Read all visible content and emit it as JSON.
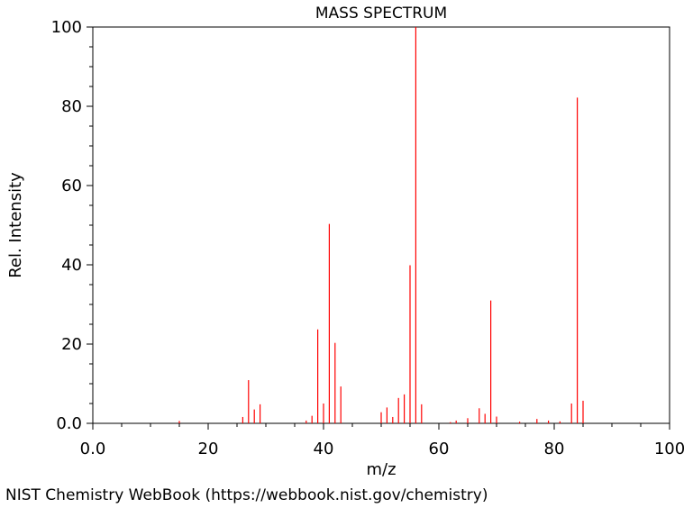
{
  "credit": "NIST Chemistry WebBook (https://webbook.nist.gov/chemistry)",
  "colors": {
    "peak": "#ff0000",
    "axis": "#000000"
  },
  "chart_data": {
    "type": "bar",
    "title": "MASS SPECTRUM",
    "xlabel": "m/z",
    "ylabel": "Rel. Intensity",
    "xlim": [
      0,
      100
    ],
    "ylim": [
      0,
      100
    ],
    "xticks": [
      0,
      20,
      40,
      60,
      80,
      100
    ],
    "xtick_labels": [
      "0.0",
      "20",
      "40",
      "60",
      "80",
      "100"
    ],
    "yticks": [
      0,
      20,
      40,
      60,
      80,
      100
    ],
    "ytick_labels": [
      "0.0",
      "20",
      "40",
      "60",
      "80",
      "100"
    ],
    "grid": false,
    "legend": "none",
    "series": [
      {
        "mz": [
          15,
          26,
          27,
          28,
          29,
          37,
          38,
          39,
          40,
          41,
          42,
          43,
          50,
          51,
          52,
          53,
          54,
          55,
          56,
          57,
          62,
          63,
          65,
          67,
          68,
          69,
          70,
          74,
          77,
          79,
          81,
          83,
          84,
          85
        ],
        "intensity": [
          0.6,
          1.6,
          10.9,
          3.5,
          4.8,
          0.7,
          1.9,
          23.7,
          5.0,
          50.3,
          20.3,
          9.3,
          2.8,
          4.0,
          1.6,
          6.4,
          7.3,
          39.9,
          100,
          4.8,
          0.3,
          0.7,
          1.3,
          3.8,
          2.4,
          31.0,
          1.7,
          0.4,
          1.1,
          0.7,
          0.5,
          5.0,
          82.2,
          5.7
        ]
      }
    ]
  }
}
